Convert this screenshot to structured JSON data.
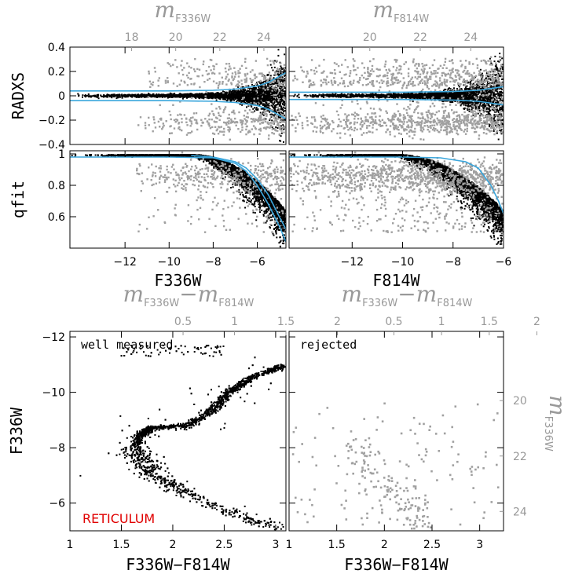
{
  "colors": {
    "good": "#000000",
    "rejected": "#a0a0a0",
    "limit": "#3aa6dc",
    "target": "#e00000",
    "secondary_axis": "#999999"
  },
  "chart_data": [
    {
      "type": "scatter",
      "xlabel": "F336W",
      "ylabel": "RADXS",
      "xlim": [
        -14.5,
        -4.7
      ],
      "ylim": [
        -0.4,
        0.4
      ],
      "xticks": [
        -12,
        -10,
        -8,
        -6
      ],
      "yticks": [
        -0.4,
        -0.2,
        0,
        0.2,
        0.4
      ],
      "yticklabels": [
        "−0.4",
        "−0.2",
        "0",
        "0.2",
        "0.4"
      ],
      "top_axis": {
        "label": "m",
        "subscript": "F336W",
        "ticks": [
          18,
          20,
          22,
          24
        ],
        "offset": 29.7
      },
      "series": [
        {
          "kind": "good",
          "shape": "radxs",
          "x_range": [
            -14.5,
            -4.7
          ],
          "count": 2600
        },
        {
          "kind": "rejected",
          "shape": "radxs",
          "x_range": [
            -11.5,
            -4.7
          ],
          "count": 550
        },
        {
          "kind": "limit",
          "curve": [
            [
              -14.5,
              0.04
            ],
            [
              -10,
              0.04
            ],
            [
              -8,
              0.045
            ],
            [
              -7,
              0.055
            ],
            [
              -6,
              0.08
            ],
            [
              -5.5,
              0.11
            ],
            [
              -5,
              0.16
            ],
            [
              -4.7,
              0.19
            ]
          ]
        },
        {
          "kind": "limit",
          "curve": [
            [
              -14.5,
              -0.04
            ],
            [
              -10,
              -0.04
            ],
            [
              -8,
              -0.045
            ],
            [
              -7,
              -0.055
            ],
            [
              -6,
              -0.08
            ],
            [
              -5.5,
              -0.11
            ],
            [
              -5,
              -0.16
            ],
            [
              -4.7,
              -0.19
            ]
          ]
        }
      ]
    },
    {
      "type": "scatter",
      "xlabel": "F814W",
      "ylabel": "",
      "xlim": [
        -14.5,
        -6.0
      ],
      "ylim": [
        -0.4,
        0.4
      ],
      "xticks": [
        -12,
        -10,
        -8,
        -6
      ],
      "yticks": [
        -0.4,
        -0.2,
        0,
        0.2,
        0.4
      ],
      "top_axis": {
        "label": "m",
        "subscript": "F814W",
        "ticks": [
          20,
          22,
          24
        ],
        "offset": 31.3
      },
      "series": [
        {
          "kind": "good",
          "shape": "radxs",
          "x_range": [
            -14.5,
            -6.0
          ],
          "count": 2600
        },
        {
          "kind": "rejected",
          "shape": "radxs",
          "x_range": [
            -14.5,
            -6.0
          ],
          "count": 1300
        },
        {
          "kind": "limit",
          "curve": [
            [
              -14.5,
              0.03
            ],
            [
              -10,
              0.03
            ],
            [
              -8,
              0.035
            ],
            [
              -7,
              0.045
            ],
            [
              -6.5,
              0.06
            ],
            [
              -6,
              0.075
            ]
          ]
        },
        {
          "kind": "limit",
          "curve": [
            [
              -14.5,
              -0.03
            ],
            [
              -10,
              -0.03
            ],
            [
              -8,
              -0.035
            ],
            [
              -7,
              -0.045
            ],
            [
              -6.5,
              -0.06
            ],
            [
              -6,
              -0.075
            ]
          ]
        }
      ]
    },
    {
      "type": "scatter",
      "xlabel": "F336W",
      "ylabel": "qfit",
      "xlim": [
        -14.5,
        -4.7
      ],
      "ylim": [
        0.4,
        1.02
      ],
      "xticks": [
        -12,
        -10,
        -8,
        -6
      ],
      "yticks": [
        0.6,
        0.8,
        1
      ],
      "yticklabels": [
        "0.6",
        "0.8",
        "1"
      ],
      "series": [
        {
          "kind": "good",
          "shape": "qfit",
          "x_range": [
            -14.5,
            -4.7
          ],
          "count": 2600
        },
        {
          "kind": "rejected",
          "shape": "qfit",
          "x_range": [
            -11.5,
            -4.7
          ],
          "count": 450
        },
        {
          "kind": "limit",
          "curve": [
            [
              -14.5,
              0.98
            ],
            [
              -10,
              0.98
            ],
            [
              -8,
              0.975
            ],
            [
              -7,
              0.94
            ],
            [
              -6.5,
              0.89
            ],
            [
              -6,
              0.8
            ],
            [
              -5.5,
              0.68
            ],
            [
              -5,
              0.54
            ],
            [
              -4.7,
              0.44
            ]
          ]
        },
        {
          "kind": "limit",
          "curve": [
            [
              -9,
              0.99
            ],
            [
              -8,
              0.98
            ],
            [
              -7,
              0.95
            ],
            [
              -6.5,
              0.91
            ],
            [
              -6,
              0.84
            ],
            [
              -5.5,
              0.74
            ],
            [
              -5,
              0.6
            ],
            [
              -4.7,
              0.52
            ]
          ]
        }
      ]
    },
    {
      "type": "scatter",
      "xlabel": "F814W",
      "ylabel": "",
      "xlim": [
        -14.5,
        -6.0
      ],
      "ylim": [
        0.4,
        1.02
      ],
      "xticks": [
        -12,
        -10,
        -8,
        -6
      ],
      "yticks": [
        0.6,
        0.8,
        1
      ],
      "series": [
        {
          "kind": "good",
          "shape": "qfit",
          "x_range": [
            -14.5,
            -6.0
          ],
          "count": 2600
        },
        {
          "kind": "rejected",
          "shape": "qfit",
          "x_range": [
            -14.5,
            -6.0
          ],
          "count": 1200
        },
        {
          "kind": "limit",
          "curve": [
            [
              -14.5,
              0.98
            ],
            [
              -10,
              0.98
            ],
            [
              -8.5,
              0.975
            ],
            [
              -7.5,
              0.95
            ],
            [
              -7,
              0.91
            ],
            [
              -6.5,
              0.8
            ],
            [
              -6.2,
              0.7
            ],
            [
              -6,
              0.62
            ]
          ]
        }
      ]
    },
    {
      "type": "scatter",
      "xlabel": "F336W−F814W",
      "ylabel": "F336W",
      "xlim": [
        1.0,
        3.1
      ],
      "ylim": [
        -5.0,
        -12.2
      ],
      "xticks": [
        1,
        1.5,
        2,
        2.5,
        3
      ],
      "yticks": [
        -6,
        -8,
        -10,
        -12
      ],
      "xticklabels": [
        "1",
        "1.5",
        "2",
        "2.5",
        "3"
      ],
      "yticklabels": [
        "−6",
        "−8",
        "−10",
        "−12"
      ],
      "top_axis": {
        "label": "m",
        "subscript": "F336W",
        "label2": "m",
        "subscript2": "F814W",
        "ticks": [
          0.5,
          1,
          1.5,
          2
        ],
        "offset": -1.6
      },
      "panel_label": "well measured",
      "annotation": "RETICULUM",
      "series": [
        {
          "kind": "good",
          "shape": "cmd",
          "sequence": [
            [
              3.1,
              -5.0
            ],
            [
              2.6,
              -5.6
            ],
            [
              2.1,
              -6.4
            ],
            [
              1.8,
              -7.1
            ],
            [
              1.65,
              -7.8
            ],
            [
              1.66,
              -8.4
            ],
            [
              1.8,
              -8.72
            ],
            [
              2.15,
              -8.8
            ],
            [
              2.4,
              -9.4
            ],
            [
              2.55,
              -10.0
            ],
            [
              2.75,
              -10.5
            ],
            [
              3.1,
              -11.0
            ]
          ],
          "count": 2400
        }
      ]
    },
    {
      "type": "scatter",
      "xlabel": "F336W−F814W",
      "ylabel": "",
      "xlim": [
        1.0,
        3.25
      ],
      "ylim": [
        -5.0,
        -12.2
      ],
      "xticks": [
        1,
        1.5,
        2,
        2.5,
        3
      ],
      "yticks": [
        -6,
        -8,
        -10,
        -12
      ],
      "xticklabels": [
        "1",
        "1.5",
        "2",
        "2.5",
        "3"
      ],
      "top_axis": {
        "label": "m",
        "subscript": "F336W",
        "label2": "m",
        "subscript2": "F814W",
        "ticks": [
          0.5,
          1,
          1.5,
          2
        ],
        "offset": -1.6
      },
      "right_axis": {
        "label": "m",
        "subscript": "F336W",
        "ticks": [
          20,
          22,
          24
        ],
        "offset": 29.7
      },
      "panel_label": "rejected",
      "series": [
        {
          "kind": "rejected",
          "shape": "cmd-rejected",
          "count": 260
        }
      ]
    }
  ]
}
